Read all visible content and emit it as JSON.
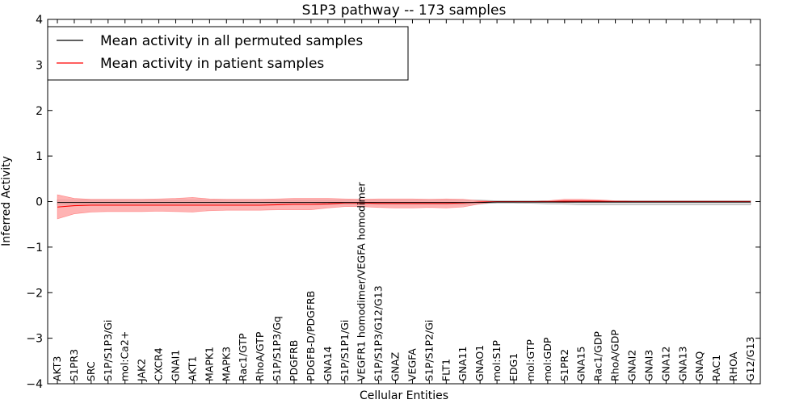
{
  "chart_data": {
    "type": "line",
    "title": "S1P3 pathway -- 173 samples",
    "xlabel": "Cellular Entities",
    "ylabel": "Inferred Activity",
    "ylim": [
      -4,
      4
    ],
    "yticks": [
      -4,
      -3,
      -2,
      -1,
      0,
      1,
      2,
      3,
      4
    ],
    "ytick_labels": [
      "−4",
      "−3",
      "−2",
      "−1",
      "0",
      "1",
      "2",
      "3",
      "4"
    ],
    "grid": false,
    "legend_position": "top-left",
    "categories": [
      "AKT3",
      "S1PR3",
      "SRC",
      "S1P/S1P3/Gi",
      "mol:Ca2+",
      "JAK2",
      "CXCR4",
      "GNAI1",
      "AKT1",
      "MAPK1",
      "MAPK3",
      "Rac1/GTP",
      "RhoA/GTP",
      "S1P/S1P3/Gq",
      "PDGFRB",
      "PDGFB-D/PDGFRB",
      "GNA14",
      "S1P/S1P1/Gi",
      "VEGFR1 homodimer/VEGFA homodimer",
      "S1P/S1P3/G12/G13",
      "GNAZ",
      "VEGFA",
      "S1P/S1P2/Gi",
      "FLT1",
      "GNA11",
      "GNAO1",
      "mol:S1P",
      "EDG1",
      "mol:GTP",
      "mol:GDP",
      "S1PR2",
      "GNA15",
      "Rac1/GDP",
      "RhoA/GDP",
      "GNAI2",
      "GNAI3",
      "GNA12",
      "GNA13",
      "GNAQ",
      "RAC1",
      "RHOA",
      "G12/G13"
    ],
    "series": [
      {
        "name": "Mean activity in all permuted samples",
        "color": "#000000",
        "band_color": "#bbbbbb",
        "values": [
          -0.02,
          -0.02,
          -0.02,
          -0.02,
          -0.02,
          -0.02,
          -0.02,
          -0.02,
          -0.02,
          -0.02,
          -0.02,
          -0.02,
          -0.02,
          -0.02,
          -0.02,
          -0.02,
          -0.02,
          -0.02,
          -0.02,
          -0.02,
          -0.02,
          -0.02,
          -0.02,
          -0.02,
          -0.02,
          -0.02,
          -0.01,
          -0.01,
          -0.01,
          -0.01,
          -0.01,
          -0.01,
          -0.01,
          -0.01,
          -0.01,
          -0.01,
          -0.01,
          -0.01,
          -0.01,
          -0.01,
          -0.01,
          -0.01
        ],
        "upper": [
          0.04,
          0.03,
          0.03,
          0.03,
          0.03,
          0.03,
          0.03,
          0.03,
          0.03,
          0.03,
          0.03,
          0.03,
          0.03,
          0.03,
          0.03,
          0.03,
          0.03,
          0.03,
          0.03,
          0.03,
          0.03,
          0.03,
          0.03,
          0.03,
          0.03,
          0.03,
          0.02,
          0.02,
          0.02,
          0.02,
          0.02,
          0.02,
          0.02,
          0.02,
          0.02,
          0.02,
          0.02,
          0.02,
          0.02,
          0.02,
          0.02,
          0.02
        ],
        "lower": [
          -0.08,
          -0.07,
          -0.07,
          -0.07,
          -0.07,
          -0.07,
          -0.07,
          -0.07,
          -0.07,
          -0.07,
          -0.07,
          -0.07,
          -0.07,
          -0.07,
          -0.07,
          -0.07,
          -0.07,
          -0.07,
          -0.07,
          -0.07,
          -0.07,
          -0.07,
          -0.07,
          -0.07,
          -0.07,
          -0.05,
          -0.03,
          -0.03,
          -0.04,
          -0.05,
          -0.06,
          -0.07,
          -0.07,
          -0.07,
          -0.07,
          -0.07,
          -0.07,
          -0.07,
          -0.07,
          -0.07,
          -0.07,
          -0.07
        ]
      },
      {
        "name": "Mean activity in patient samples",
        "color": "#ff0000",
        "band_color": "#ff9999",
        "values": [
          -0.12,
          -0.09,
          -0.08,
          -0.08,
          -0.08,
          -0.08,
          -0.08,
          -0.08,
          -0.08,
          -0.08,
          -0.08,
          -0.08,
          -0.08,
          -0.07,
          -0.06,
          -0.06,
          -0.05,
          -0.03,
          -0.03,
          -0.04,
          -0.04,
          -0.04,
          -0.04,
          -0.04,
          -0.03,
          -0.01,
          0.0,
          0.0,
          0.0,
          0.0,
          0.01,
          0.01,
          0.01,
          0.0,
          0.0,
          0.0,
          0.0,
          0.0,
          0.0,
          0.0,
          0.0,
          0.0
        ],
        "upper": [
          0.15,
          0.07,
          0.05,
          0.05,
          0.05,
          0.05,
          0.06,
          0.07,
          0.09,
          0.06,
          0.05,
          0.05,
          0.05,
          0.06,
          0.07,
          0.07,
          0.07,
          0.06,
          0.05,
          0.06,
          0.06,
          0.06,
          0.05,
          0.06,
          0.05,
          0.02,
          0.0,
          0.0,
          0.0,
          0.02,
          0.05,
          0.05,
          0.04,
          0.02,
          0.01,
          0.01,
          0.01,
          0.01,
          0.01,
          0.01,
          0.01,
          0.01
        ],
        "lower": [
          -0.38,
          -0.27,
          -0.23,
          -0.22,
          -0.22,
          -0.22,
          -0.21,
          -0.22,
          -0.23,
          -0.2,
          -0.19,
          -0.19,
          -0.19,
          -0.18,
          -0.18,
          -0.18,
          -0.14,
          -0.11,
          -0.11,
          -0.13,
          -0.14,
          -0.14,
          -0.13,
          -0.14,
          -0.12,
          -0.05,
          0.0,
          0.0,
          0.0,
          -0.01,
          -0.02,
          -0.01,
          -0.01,
          -0.01,
          -0.01,
          -0.01,
          -0.01,
          -0.01,
          -0.01,
          -0.01,
          -0.01,
          -0.01
        ]
      }
    ]
  }
}
